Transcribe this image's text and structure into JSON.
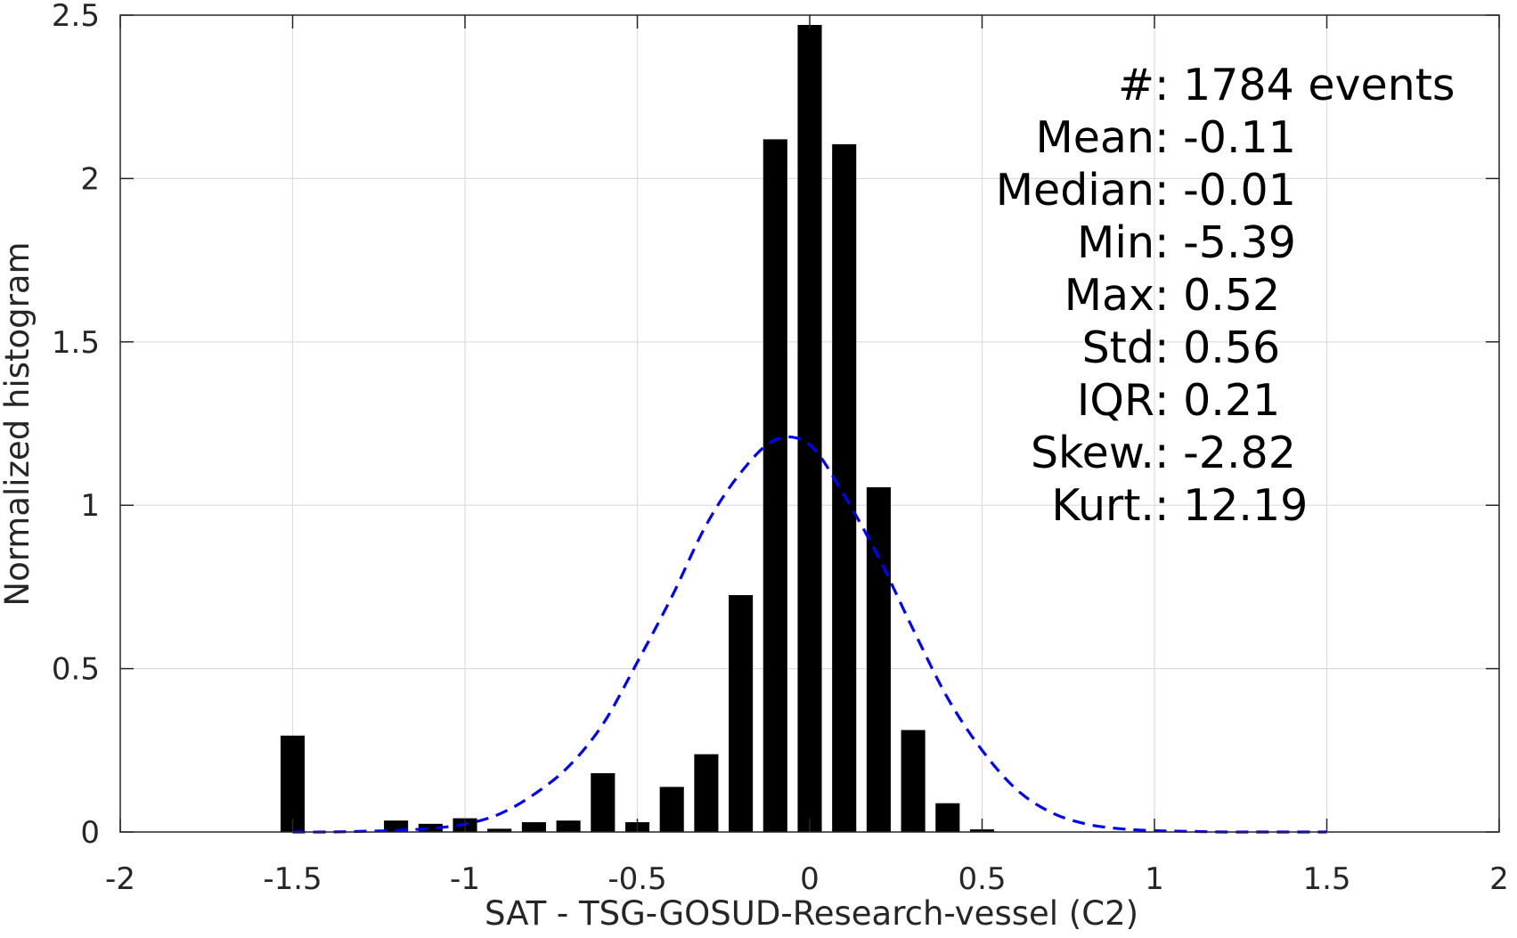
{
  "chart_data": {
    "type": "bar",
    "xlabel": "SAT - TSG-GOSUD-Research-vessel (C2)",
    "ylabel": "Normalized histogram",
    "xlim": [
      -2,
      2
    ],
    "ylim": [
      0,
      2.5
    ],
    "xticks": [
      -2,
      -1.5,
      -1,
      -0.5,
      0,
      0.5,
      1,
      1.5,
      2
    ],
    "xtick_labels": [
      "-2",
      "-1.5",
      "-1",
      "-0.5",
      "0",
      "0.5",
      "1",
      "1.5",
      "2"
    ],
    "yticks": [
      0,
      0.5,
      1,
      1.5,
      2,
      2.5
    ],
    "ytick_labels": [
      "0",
      "0.5",
      "1",
      "1.5",
      "2",
      "2.5"
    ],
    "grid": true,
    "bar_width": 0.07,
    "bars": {
      "x": [
        -1.5,
        -1.2,
        -1.1,
        -1.0,
        -0.9,
        -0.8,
        -0.7,
        -0.6,
        -0.5,
        -0.4,
        -0.3,
        -0.2,
        -0.1,
        0.0,
        0.1,
        0.2,
        0.3,
        0.4,
        0.5
      ],
      "values": [
        0.295,
        0.035,
        0.025,
        0.042,
        0.01,
        0.03,
        0.035,
        0.18,
        0.03,
        0.138,
        0.238,
        0.725,
        2.12,
        2.47,
        2.105,
        1.055,
        0.312,
        0.088,
        0.008
      ],
      "color": "#000000"
    },
    "fit_curve": {
      "style": "dashed",
      "color": "#0000ff",
      "x": [
        -1.5,
        -1.4,
        -1.3,
        -1.2,
        -1.1,
        -1.0,
        -0.9,
        -0.8,
        -0.7,
        -0.6,
        -0.5,
        -0.4,
        -0.3,
        -0.2,
        -0.1,
        0.0,
        0.1,
        0.2,
        0.3,
        0.4,
        0.5,
        0.6,
        0.7,
        0.8,
        0.9,
        1.0,
        1.1,
        1.2,
        1.3,
        1.4,
        1.5
      ],
      "y": [
        0.0,
        0.0,
        0.002,
        0.005,
        0.011,
        0.024,
        0.055,
        0.115,
        0.2,
        0.33,
        0.52,
        0.72,
        0.94,
        1.1,
        1.2,
        1.185,
        1.03,
        0.84,
        0.62,
        0.41,
        0.25,
        0.13,
        0.06,
        0.025,
        0.01,
        0.004,
        0.002,
        0.0,
        0.0,
        0.0,
        0.0
      ]
    },
    "stats": [
      {
        "label": "#",
        "sep": " : ",
        "value": "1784 events"
      },
      {
        "label": "Mean",
        "sep": " : ",
        "value": "-0.11"
      },
      {
        "label": "Median",
        "sep": " : ",
        "value": "-0.01"
      },
      {
        "label": "Min",
        "sep": " : ",
        "value": "-5.39"
      },
      {
        "label": "Max",
        "sep": " : ",
        "value": "0.52"
      },
      {
        "label": "Std",
        "sep": " : ",
        "value": "0.56"
      },
      {
        "label": "IQR",
        "sep": " : ",
        "value": "0.21"
      },
      {
        "label": "Skew.",
        "sep": " : ",
        "value": "-2.82"
      },
      {
        "label": "Kurt.",
        "sep": " : ",
        "value": "12.19"
      }
    ],
    "colors": {
      "axis": "#262626",
      "grid": "#dcdcdc",
      "bars": "#000000",
      "fit": "#0000ff"
    }
  }
}
